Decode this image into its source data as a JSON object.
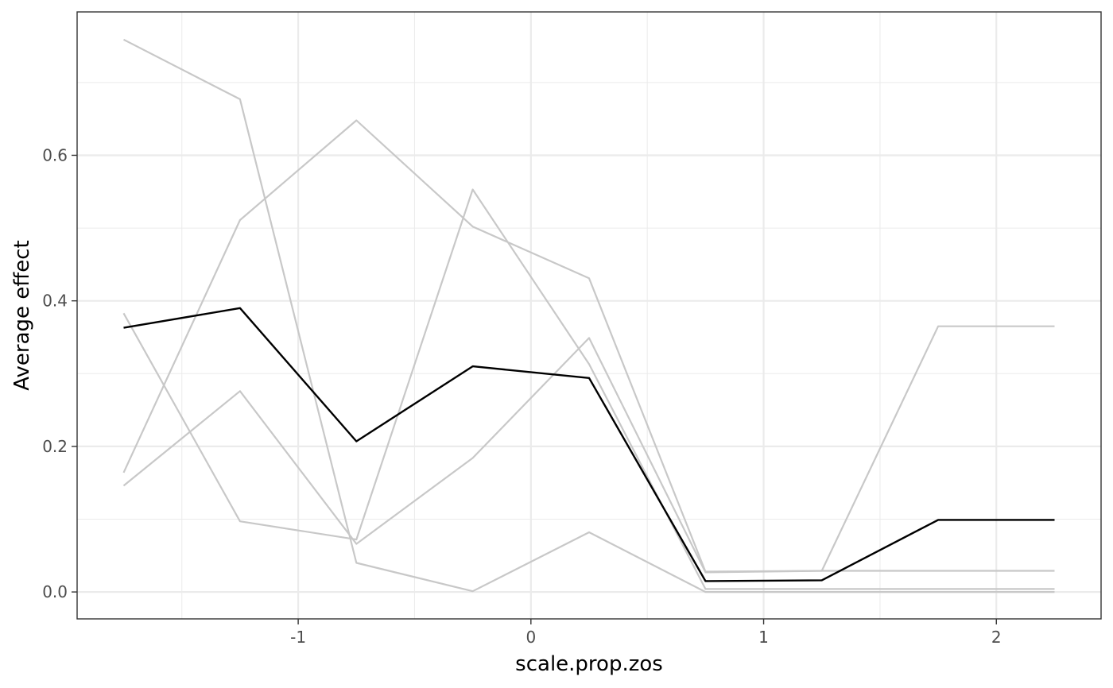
{
  "chart_data": {
    "type": "line",
    "xlabel": "scale.prop.zos",
    "ylabel": "Average effect",
    "xlim": [
      -1.95,
      2.45
    ],
    "ylim": [
      -0.037,
      0.797
    ],
    "x_ticks": [
      -1,
      0,
      1,
      2
    ],
    "x_tick_labels": [
      "-1",
      "0",
      "1",
      "2"
    ],
    "y_ticks": [
      0.0,
      0.2,
      0.4,
      0.6
    ],
    "y_tick_labels": [
      "0.0",
      "0.2",
      "0.4",
      "0.6"
    ],
    "grid": true,
    "legend": "none",
    "x": [
      -1.75,
      -1.25,
      -0.75,
      -0.25,
      0.25,
      0.75,
      1.25,
      1.75,
      2.25
    ],
    "series": [
      {
        "role": "individual",
        "color": "#c8c8c8",
        "values": [
          0.759,
          0.677,
          0.04,
          0.001,
          0.082,
          0.0,
          0.0,
          0.0,
          0.0
        ]
      },
      {
        "role": "individual",
        "color": "#c8c8c8",
        "values": [
          0.164,
          0.511,
          0.648,
          0.502,
          0.431,
          0.028,
          0.029,
          0.029,
          0.029
        ]
      },
      {
        "role": "individual",
        "color": "#c8c8c8",
        "values": [
          0.383,
          0.097,
          0.072,
          0.553,
          0.313,
          0.004,
          0.004,
          0.004,
          0.004
        ]
      },
      {
        "role": "individual",
        "color": "#c8c8c8",
        "values": [
          0.146,
          0.276,
          0.066,
          0.184,
          0.349,
          0.027,
          0.029,
          0.365,
          0.365
        ]
      },
      {
        "role": "average",
        "color": "#000000",
        "values": [
          0.363,
          0.39,
          0.207,
          0.31,
          0.294,
          0.015,
          0.016,
          0.099,
          0.099
        ]
      }
    ]
  }
}
